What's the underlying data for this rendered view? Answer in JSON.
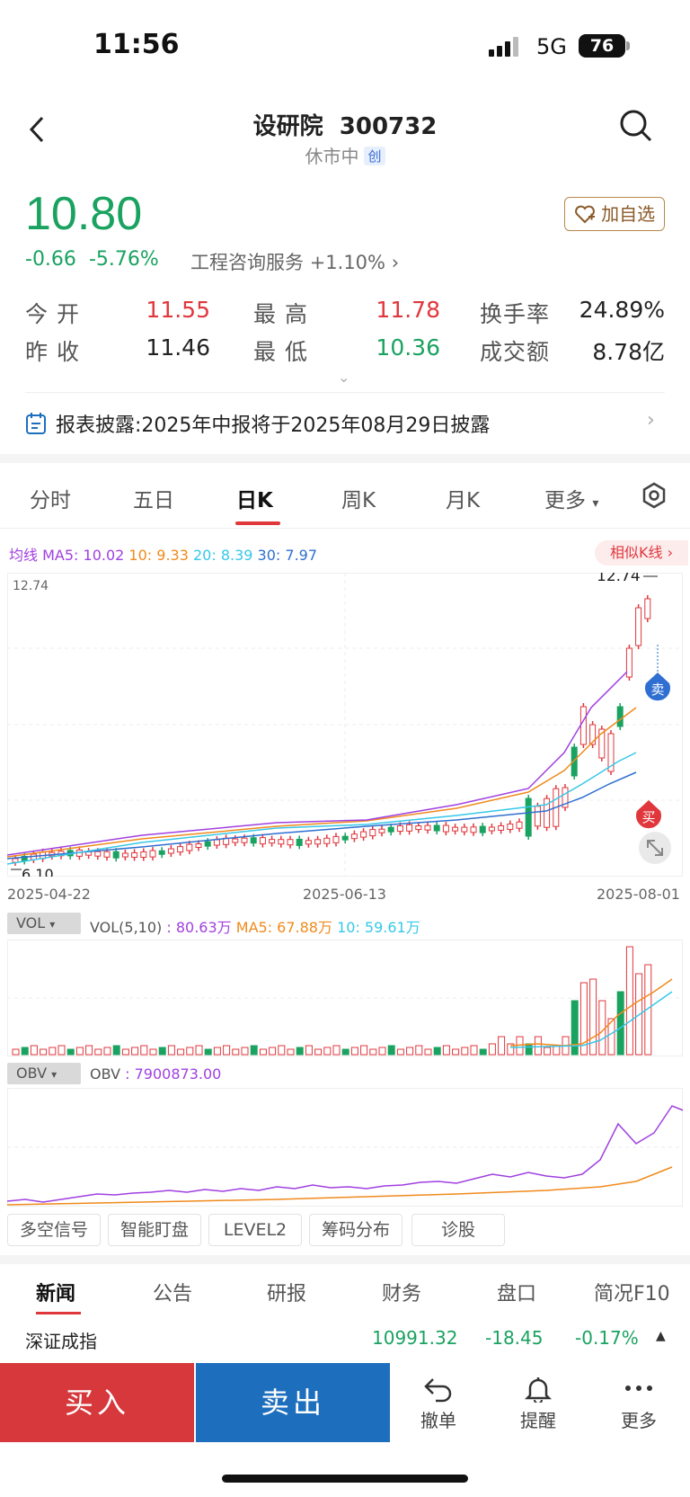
{
  "status_bar": {
    "time": "11:56",
    "network": "5G",
    "battery": "76"
  },
  "header": {
    "stock_name": "设研院",
    "stock_code": "300732",
    "market_status": "休市中",
    "board_badge": "创"
  },
  "quote": {
    "price": "10.80",
    "change": "-0.66",
    "change_pct": "-5.76%",
    "industry": "工程咨询服务",
    "industry_change": "+1.10%",
    "watch_label": "加自选",
    "stats": [
      {
        "label": "今 开",
        "value": "11.55",
        "color": "#e0373d"
      },
      {
        "label": "最 高",
        "value": "11.78",
        "color": "#e0373d"
      },
      {
        "label": "换手率",
        "value": "24.89%",
        "color": "#222222"
      },
      {
        "label": "昨 收",
        "value": "11.46",
        "color": "#222222"
      },
      {
        "label": "最 低",
        "value": "10.36",
        "color": "#1aa260"
      },
      {
        "label": "成交额",
        "value": "8.78亿",
        "color": "#222222"
      }
    ]
  },
  "notice": {
    "text": "报表披露:2025年中报将于2025年08月29日披露",
    "icon": "calendar-icon"
  },
  "period_tabs": [
    "分时",
    "五日",
    "日K",
    "周K",
    "月K",
    "更多"
  ],
  "ma_legend": {
    "prefix": "均线",
    "ma5": "MA5: 10.02",
    "ma10": "10: 9.33",
    "ma20": "20: 8.39",
    "ma30": "30: 7.97"
  },
  "similar_k_label": "相似K线",
  "chart_data": [
    {
      "type": "candlestick",
      "title": "",
      "x_start": "2025-04-22",
      "x_mid": "2025-06-13",
      "x_end": "2025-08-01",
      "ylim": [
        6.1,
        12.74
      ],
      "y_top_label": "12.74",
      "max_label": "12.74",
      "min_label": "6.10",
      "sell_marker": "卖",
      "buy_marker": "买",
      "series": [
        {
          "name": "MA5",
          "color": "#a040e0"
        },
        {
          "name": "10",
          "color": "#f08a1c"
        },
        {
          "name": "20",
          "color": "#36c8e8"
        },
        {
          "name": "30",
          "color": "#2e6fd0"
        }
      ]
    },
    {
      "type": "bar",
      "title": "",
      "selector": "VOL",
      "label": "VOL(5,10)",
      "value": "80.63万",
      "ma5": "MA5: 67.88万",
      "ma10": "10: 59.61万"
    },
    {
      "type": "line",
      "title": "",
      "selector": "OBV",
      "label": "OBV",
      "value": "7900873.00"
    }
  ],
  "tools": [
    "多空信号",
    "智能盯盘",
    "LEVEL2",
    "筹码分布",
    "诊股"
  ],
  "news_tabs": [
    "新闻",
    "公告",
    "研报",
    "财务",
    "盘口",
    "简况F10"
  ],
  "index_row": {
    "name": "深证成指",
    "value": "10991.32",
    "change": "-18.45",
    "change_pct": "-0.17%"
  },
  "bottom_bar": {
    "buy": "买入",
    "sell": "卖出",
    "cancel": "撤单",
    "alert": "提醒",
    "more": "更多"
  }
}
